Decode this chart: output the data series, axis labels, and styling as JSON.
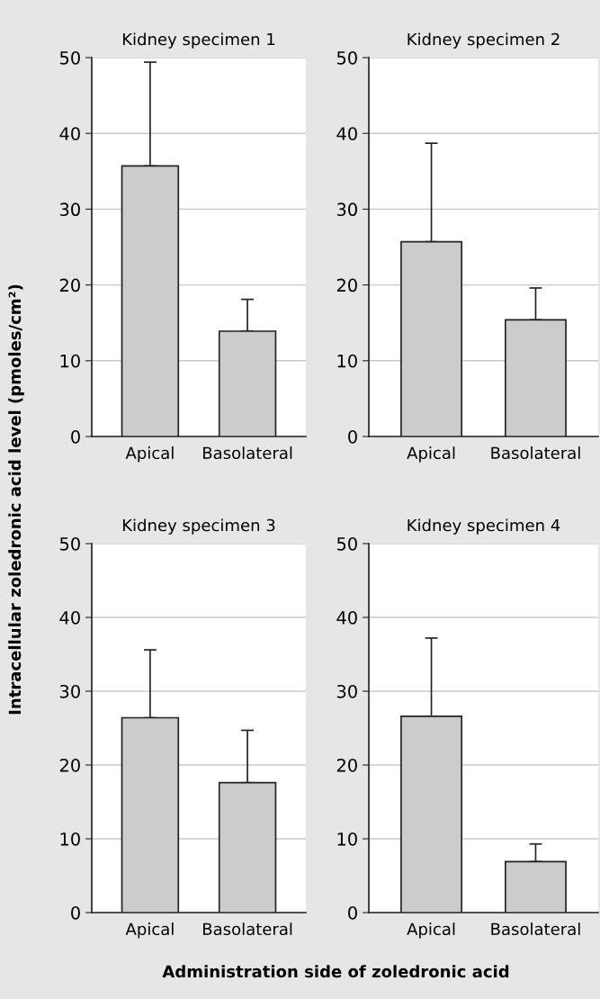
{
  "chart_data": [
    {
      "type": "bar",
      "title": "Kidney specimen 1",
      "ylabel": "Intracellular zoledronic acid level (pmoles/cm²)",
      "categories": [
        "Apical",
        "Basolateral"
      ],
      "values": [
        35.7,
        13.9
      ],
      "errors": [
        [
          35.7,
          49.4
        ],
        [
          13.9,
          18.1
        ]
      ],
      "color": "#cccccc",
      "ylim": [
        0,
        50
      ],
      "yticks": [
        0,
        10,
        20,
        30,
        40,
        50
      ],
      "grid": "y"
    },
    {
      "type": "bar",
      "title": "Kidney specimen 2",
      "categories": [
        "Apical",
        "Basolateral"
      ],
      "values": [
        25.7,
        15.4
      ],
      "errors": [
        [
          25.7,
          38.7
        ],
        [
          15.4,
          19.6
        ]
      ],
      "color": "#cccccc",
      "ylim": [
        0,
        50
      ],
      "yticks": [
        0,
        10,
        20,
        30,
        40,
        50
      ],
      "grid": "y"
    },
    {
      "type": "bar",
      "title": "Kidney specimen 3",
      "categories": [
        "Apical",
        "Basolateral"
      ],
      "values": [
        26.4,
        17.6
      ],
      "errors": [
        [
          26.4,
          35.6
        ],
        [
          17.6,
          24.7
        ]
      ],
      "color": "#cccccc",
      "ylim": [
        0,
        50
      ],
      "yticks": [
        0,
        10,
        20,
        30,
        40,
        50
      ],
      "grid": "y"
    },
    {
      "type": "bar",
      "title": "Kidney specimen 4",
      "xlabel": "Administration side of zoledronic acid",
      "categories": [
        "Apical",
        "Basolateral"
      ],
      "values": [
        26.6,
        6.9
      ],
      "errors": [
        [
          26.6,
          37.2
        ],
        [
          6.9,
          9.3
        ]
      ],
      "color": "#cccccc",
      "ylim": [
        0,
        50
      ],
      "yticks": [
        0,
        10,
        20,
        30,
        40,
        50
      ],
      "grid": "y"
    }
  ]
}
